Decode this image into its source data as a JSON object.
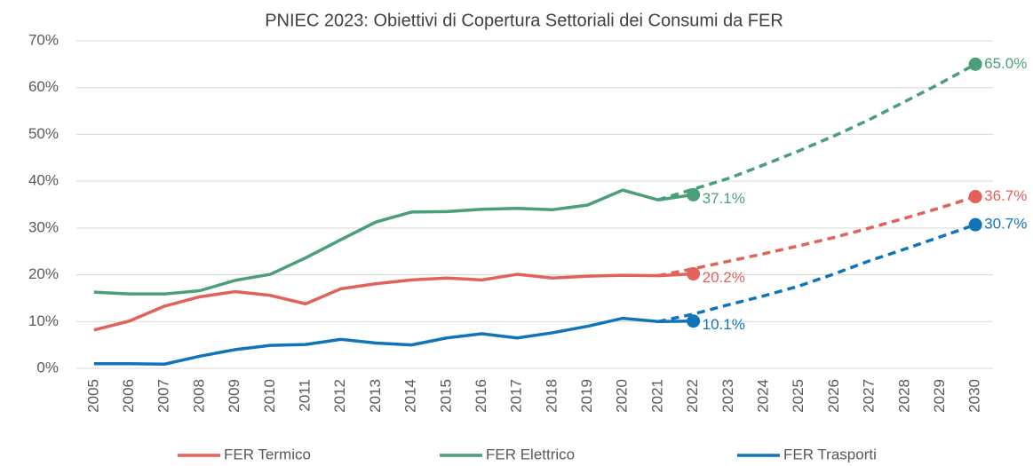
{
  "chart_data": {
    "type": "line",
    "title": "PNIEC 2023: Obiettivi di Copertura Settoriali dei Consumi da FER",
    "categories": [
      "2005",
      "2006",
      "2007",
      "2008",
      "2009",
      "2010",
      "2011",
      "2012",
      "2013",
      "2014",
      "2015",
      "2016",
      "2017",
      "2018",
      "2019",
      "2020",
      "2021",
      "2022",
      "2023",
      "2024",
      "2025",
      "2026",
      "2027",
      "2028",
      "2029",
      "2030"
    ],
    "ylim": [
      0,
      70
    ],
    "yticks": [
      {
        "value": 0,
        "label": "0%"
      },
      {
        "value": 10,
        "label": "10%"
      },
      {
        "value": 20,
        "label": "20%"
      },
      {
        "value": 30,
        "label": "30%"
      },
      {
        "value": 40,
        "label": "40%"
      },
      {
        "value": 50,
        "label": "50%"
      },
      {
        "value": 60,
        "label": "60%"
      },
      {
        "value": 70,
        "label": "70%"
      }
    ],
    "grid": true,
    "legend": "bottom",
    "series": [
      {
        "name": "FER Termico",
        "color": "#e0625a",
        "values": [
          8.2,
          10.1,
          13.3,
          15.3,
          16.4,
          15.6,
          13.8,
          17.0,
          18.1,
          18.9,
          19.3,
          18.9,
          20.1,
          19.3,
          19.7,
          19.9,
          19.8,
          20.2,
          null,
          null,
          null,
          null,
          null,
          null,
          null,
          null
        ],
        "value_labels": [
          null,
          null,
          null,
          null,
          null,
          null,
          null,
          null,
          null,
          null,
          null,
          null,
          null,
          null,
          null,
          null,
          null,
          "20.2%",
          null,
          null,
          null,
          null,
          null,
          null,
          null,
          null
        ],
        "projection": [
          null,
          null,
          null,
          null,
          null,
          null,
          null,
          null,
          null,
          null,
          null,
          null,
          null,
          null,
          null,
          null,
          19.8,
          21.3,
          22.9,
          24.5,
          26.2,
          28.0,
          30.0,
          32.1,
          34.3,
          36.7
        ],
        "projection_labels": [
          null,
          null,
          null,
          null,
          null,
          null,
          null,
          null,
          null,
          null,
          null,
          null,
          null,
          null,
          null,
          null,
          null,
          null,
          null,
          null,
          null,
          null,
          null,
          null,
          null,
          "36.7%"
        ]
      },
      {
        "name": "FER Elettrico",
        "color": "#4a9e78",
        "values": [
          16.3,
          15.9,
          15.9,
          16.6,
          18.8,
          20.1,
          23.6,
          27.5,
          31.3,
          33.4,
          33.5,
          34.0,
          34.2,
          33.9,
          34.9,
          38.1,
          36.0,
          37.1,
          null,
          null,
          null,
          null,
          null,
          null,
          null,
          null
        ],
        "value_labels": [
          null,
          null,
          null,
          null,
          null,
          null,
          null,
          null,
          null,
          null,
          null,
          null,
          null,
          null,
          null,
          null,
          null,
          "37.1%",
          null,
          null,
          null,
          null,
          null,
          null,
          null,
          null
        ],
        "projection": [
          null,
          null,
          null,
          null,
          null,
          null,
          null,
          null,
          null,
          null,
          null,
          null,
          null,
          null,
          null,
          null,
          36.0,
          38.3,
          40.6,
          43.5,
          46.5,
          49.7,
          53.2,
          57.0,
          60.9,
          65.0
        ],
        "projection_labels": [
          null,
          null,
          null,
          null,
          null,
          null,
          null,
          null,
          null,
          null,
          null,
          null,
          null,
          null,
          null,
          null,
          null,
          null,
          null,
          null,
          null,
          null,
          null,
          null,
          null,
          "65.0%"
        ]
      },
      {
        "name": "FER Trasporti",
        "color": "#1274b8",
        "values": [
          1.0,
          1.0,
          0.9,
          2.6,
          4.0,
          4.9,
          5.1,
          6.2,
          5.4,
          5.0,
          6.5,
          7.4,
          6.5,
          7.6,
          9.0,
          10.7,
          10.0,
          10.1,
          null,
          null,
          null,
          null,
          null,
          null,
          null,
          null
        ],
        "value_labels": [
          null,
          null,
          null,
          null,
          null,
          null,
          null,
          null,
          null,
          null,
          null,
          null,
          null,
          null,
          null,
          null,
          null,
          "10.1%",
          null,
          null,
          null,
          null,
          null,
          null,
          null,
          null
        ],
        "projection": [
          null,
          null,
          null,
          null,
          null,
          null,
          null,
          null,
          null,
          null,
          null,
          null,
          null,
          null,
          null,
          null,
          10.0,
          11.6,
          13.6,
          15.5,
          17.6,
          20.2,
          23.0,
          25.5,
          28.1,
          30.7
        ],
        "projection_labels": [
          null,
          null,
          null,
          null,
          null,
          null,
          null,
          null,
          null,
          null,
          null,
          null,
          null,
          null,
          null,
          null,
          null,
          null,
          null,
          null,
          null,
          null,
          null,
          null,
          null,
          "30.7%"
        ]
      }
    ]
  }
}
